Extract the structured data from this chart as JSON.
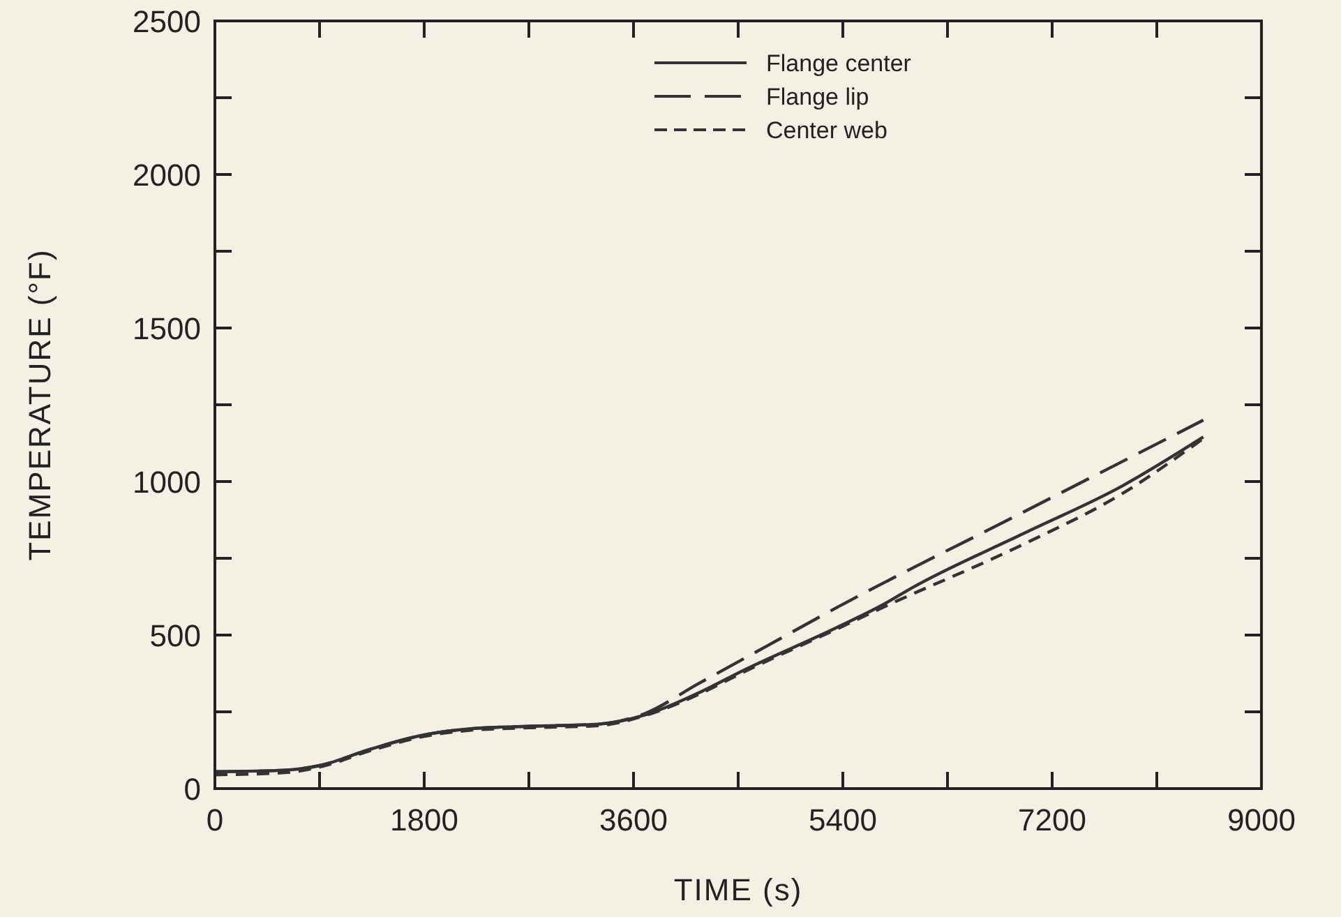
{
  "chart_data": {
    "type": "line",
    "xlabel": "TIME (s)",
    "ylabel": "TEMPERATURE (°F)",
    "xlim": [
      0,
      9000
    ],
    "ylim": [
      0,
      2500
    ],
    "xticks": [
      0,
      {
        "value": 900,
        "label": null
      },
      1800,
      {
        "value": 2700,
        "label": null
      },
      3600,
      {
        "value": 4500,
        "label": null
      },
      5400,
      {
        "value": 6300,
        "label": null
      },
      7200,
      {
        "value": 8100,
        "label": null
      },
      9000
    ],
    "yticks": [
      0,
      {
        "value": 250,
        "label": null
      },
      500,
      {
        "value": 750,
        "label": null
      },
      1000,
      {
        "value": 1250,
        "label": null
      },
      1500,
      {
        "value": 1750,
        "label": null
      },
      2000,
      {
        "value": 2250,
        "label": null
      },
      2500
    ],
    "legend": "top",
    "grid": false,
    "series": [
      {
        "name": "Flange center",
        "color": "#333333",
        "line_style": "solid",
        "x": [
          0,
          600,
          900,
          1350,
          1800,
          2200,
          2700,
          3300,
          3700,
          4150,
          4550,
          5350,
          5750,
          6000,
          6950,
          7800,
          8500
        ],
        "values": [
          55,
          60,
          75,
          130,
          175,
          195,
          203,
          210,
          240,
          310,
          386,
          525,
          600,
          655,
          830,
          985,
          1145
        ]
      },
      {
        "name": "Flange lip",
        "color": "#333333",
        "line_style": "longdash",
        "x": [
          0,
          600,
          900,
          1350,
          1800,
          2200,
          2700,
          3300,
          3700,
          4150,
          4750,
          5350,
          6950,
          8500
        ],
        "values": [
          55,
          60,
          75,
          130,
          175,
          195,
          203,
          210,
          245,
          340,
          465,
          590,
          900,
          1200
        ]
      },
      {
        "name": "Center web",
        "color": "#333333",
        "line_style": "dashed",
        "x": [
          0,
          600,
          900,
          1350,
          1800,
          2200,
          2700,
          3300,
          3700,
          4150,
          4550,
          5350,
          5750,
          6950,
          7800,
          8500
        ],
        "values": [
          45,
          52,
          70,
          125,
          170,
          190,
          198,
          205,
          238,
          305,
          380,
          520,
          591,
          795,
          960,
          1140
        ]
      }
    ]
  }
}
